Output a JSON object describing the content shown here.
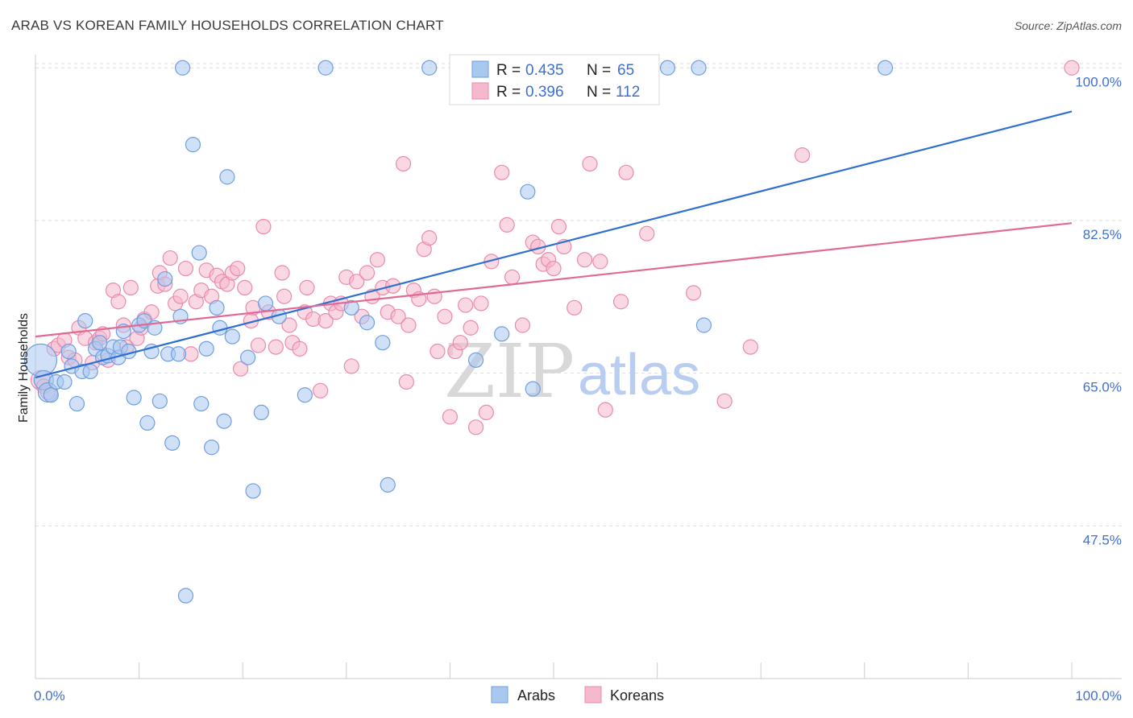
{
  "title": "ARAB VS KOREAN FAMILY HOUSEHOLDS CORRELATION CHART",
  "source": "Source: ZipAtlas.com",
  "watermark": {
    "zip": "ZIP",
    "atlas": "atlas"
  },
  "colors": {
    "arabs_fill": "#a9c8f0",
    "arabs_stroke": "#6f9ee0",
    "arabs_line": "#2f6fd0",
    "koreans_fill": "#f6b8cc",
    "koreans_stroke": "#ea8aaa",
    "koreans_line": "#e06a96",
    "grid": "#dddddd",
    "tick_text": "#3f6fd0"
  },
  "legend": {
    "rows": [
      {
        "r_label": "R =",
        "r_value": "0.435",
        "n_label": "N =",
        "n_value": "65"
      },
      {
        "r_label": "R =",
        "r_value": "0.396",
        "n_label": "N =",
        "n_value": "112"
      }
    ]
  },
  "chart_data": {
    "type": "scatter",
    "title": "ARAB VS KOREAN FAMILY HOUSEHOLDS CORRELATION CHART",
    "ylabel": "Family Households",
    "xlabel": "",
    "xlim": [
      0,
      100
    ],
    "ylim": [
      30,
      101.5
    ],
    "x_tick_labels": [
      "0.0%",
      "100.0%"
    ],
    "y_ticks": [
      {
        "value": 47.5,
        "label": "47.5%"
      },
      {
        "value": 65.0,
        "label": "65.0%"
      },
      {
        "value": 82.5,
        "label": "82.5%"
      },
      {
        "value": 100.0,
        "label": "100.0%"
      }
    ],
    "grid": "horizontal dashed",
    "legend_placement": "top-center",
    "series": [
      {
        "name": "Arabs",
        "trend": {
          "x": [
            0,
            100
          ],
          "y": [
            64.5,
            95.0
          ]
        },
        "points": [
          [
            0.5,
            66.5,
            3
          ],
          [
            0.8,
            64.2,
            2
          ],
          [
            1.2,
            62.8,
            2
          ],
          [
            1.5,
            62.5,
            1
          ],
          [
            2.0,
            64.0,
            1
          ],
          [
            2.8,
            64.0,
            1
          ],
          [
            3.2,
            67.5,
            1
          ],
          [
            3.5,
            65.8,
            1
          ],
          [
            4.0,
            61.5,
            1
          ],
          [
            4.5,
            65.2,
            1
          ],
          [
            4.8,
            71.0,
            1
          ],
          [
            5.3,
            65.2,
            1
          ],
          [
            5.8,
            67.8,
            1
          ],
          [
            6.2,
            68.5,
            1
          ],
          [
            6.5,
            66.8,
            1
          ],
          [
            7.0,
            67.0,
            1
          ],
          [
            7.5,
            68.0,
            1
          ],
          [
            8.0,
            66.8,
            1
          ],
          [
            8.2,
            68.0,
            1
          ],
          [
            8.5,
            69.8,
            1
          ],
          [
            9.0,
            67.5,
            1
          ],
          [
            9.5,
            62.2,
            1
          ],
          [
            10.0,
            70.5,
            1
          ],
          [
            10.5,
            71.0,
            1
          ],
          [
            10.8,
            59.3,
            1
          ],
          [
            11.2,
            67.5,
            1
          ],
          [
            11.5,
            70.2,
            1
          ],
          [
            12.0,
            61.8,
            1
          ],
          [
            12.5,
            75.8,
            1
          ],
          [
            12.8,
            67.2,
            1
          ],
          [
            13.2,
            57.0,
            1
          ],
          [
            13.8,
            67.2,
            1
          ],
          [
            14.0,
            71.5,
            1
          ],
          [
            14.2,
            100.0,
            1
          ],
          [
            14.5,
            39.5,
            1
          ],
          [
            15.2,
            91.2,
            1
          ],
          [
            15.8,
            78.8,
            1
          ],
          [
            16.0,
            61.5,
            1
          ],
          [
            16.5,
            67.8,
            1
          ],
          [
            17.0,
            56.5,
            1
          ],
          [
            17.5,
            72.5,
            1
          ],
          [
            17.8,
            70.2,
            1
          ],
          [
            18.2,
            59.5,
            1
          ],
          [
            18.5,
            87.5,
            1
          ],
          [
            19.0,
            69.2,
            1
          ],
          [
            20.5,
            66.8,
            1
          ],
          [
            21.0,
            51.5,
            1
          ],
          [
            21.8,
            60.5,
            1
          ],
          [
            22.2,
            73.0,
            1
          ],
          [
            23.5,
            71.5,
            1
          ],
          [
            26.0,
            62.5,
            1
          ],
          [
            28.0,
            100.0,
            1
          ],
          [
            30.5,
            72.5,
            1
          ],
          [
            32.0,
            70.8,
            1
          ],
          [
            33.5,
            68.5,
            1
          ],
          [
            34.0,
            52.2,
            1
          ],
          [
            38.0,
            100.0,
            1
          ],
          [
            42.5,
            66.5,
            1
          ],
          [
            45.0,
            69.5,
            1
          ],
          [
            47.5,
            85.8,
            1
          ],
          [
            48.0,
            63.2,
            1
          ],
          [
            61.0,
            100.0,
            1
          ],
          [
            64.0,
            100.0,
            1
          ],
          [
            64.5,
            70.5,
            1
          ],
          [
            82.0,
            100.0,
            1
          ]
        ]
      },
      {
        "name": "Koreans",
        "trend": {
          "x": [
            0,
            100
          ],
          "y": [
            69.2,
            82.2
          ]
        },
        "points": [
          [
            0.5,
            64.2,
            2
          ],
          [
            0.8,
            63.5,
            1
          ],
          [
            1.2,
            62.8,
            1
          ],
          [
            1.8,
            67.8,
            1
          ],
          [
            2.2,
            68.2,
            1
          ],
          [
            2.8,
            68.8,
            1
          ],
          [
            3.2,
            66.8,
            1
          ],
          [
            3.8,
            66.5,
            1
          ],
          [
            4.2,
            70.2,
            1
          ],
          [
            4.8,
            69.0,
            1
          ],
          [
            5.5,
            66.2,
            1
          ],
          [
            5.8,
            68.5,
            1
          ],
          [
            6.2,
            69.0,
            1
          ],
          [
            6.5,
            69.5,
            1
          ],
          [
            7.0,
            66.5,
            1
          ],
          [
            7.5,
            74.5,
            1
          ],
          [
            8.0,
            73.2,
            1
          ],
          [
            8.5,
            70.5,
            1
          ],
          [
            8.8,
            68.0,
            1
          ],
          [
            9.2,
            74.8,
            1
          ],
          [
            9.8,
            69.0,
            1
          ],
          [
            10.2,
            70.2,
            1
          ],
          [
            10.5,
            71.2,
            1
          ],
          [
            11.2,
            72.0,
            1
          ],
          [
            11.8,
            75.0,
            1
          ],
          [
            12.0,
            76.5,
            1
          ],
          [
            12.5,
            75.2,
            1
          ],
          [
            13.0,
            78.2,
            1
          ],
          [
            13.5,
            73.0,
            1
          ],
          [
            14.0,
            73.8,
            1
          ],
          [
            14.5,
            77.0,
            1
          ],
          [
            15.0,
            67.2,
            1
          ],
          [
            15.5,
            73.2,
            1
          ],
          [
            16.0,
            74.5,
            1
          ],
          [
            16.5,
            76.8,
            1
          ],
          [
            17.0,
            73.8,
            1
          ],
          [
            17.5,
            76.2,
            1
          ],
          [
            18.0,
            75.5,
            1
          ],
          [
            18.5,
            75.2,
            1
          ],
          [
            19.0,
            76.5,
            1
          ],
          [
            19.5,
            77.0,
            1
          ],
          [
            19.8,
            65.5,
            1
          ],
          [
            20.2,
            74.8,
            1
          ],
          [
            20.8,
            71.0,
            1
          ],
          [
            21.0,
            72.5,
            1
          ],
          [
            21.5,
            68.2,
            1
          ],
          [
            22.0,
            81.8,
            1
          ],
          [
            22.5,
            72.0,
            1
          ],
          [
            23.2,
            68.0,
            1
          ],
          [
            23.8,
            76.5,
            1
          ],
          [
            24.0,
            73.8,
            1
          ],
          [
            24.5,
            70.5,
            1
          ],
          [
            24.8,
            68.5,
            1
          ],
          [
            25.5,
            67.8,
            1
          ],
          [
            26.0,
            72.0,
            1
          ],
          [
            26.2,
            74.8,
            1
          ],
          [
            26.8,
            71.2,
            1
          ],
          [
            27.5,
            63.0,
            1
          ],
          [
            28.0,
            71.0,
            1
          ],
          [
            28.5,
            73.0,
            1
          ],
          [
            29.0,
            72.0,
            1
          ],
          [
            29.5,
            73.0,
            1
          ],
          [
            30.0,
            76.0,
            1
          ],
          [
            30.5,
            65.8,
            1
          ],
          [
            31.0,
            75.5,
            1
          ],
          [
            31.5,
            71.5,
            1
          ],
          [
            32.0,
            76.5,
            1
          ],
          [
            32.5,
            73.8,
            1
          ],
          [
            33.0,
            78.0,
            1
          ],
          [
            33.5,
            74.8,
            1
          ],
          [
            34.0,
            72.0,
            1
          ],
          [
            34.5,
            75.0,
            1
          ],
          [
            35.0,
            71.5,
            1
          ],
          [
            35.5,
            89.0,
            1
          ],
          [
            35.8,
            64.0,
            1
          ],
          [
            36.0,
            70.5,
            1
          ],
          [
            36.5,
            74.5,
            1
          ],
          [
            37.0,
            73.5,
            1
          ],
          [
            37.5,
            79.2,
            1
          ],
          [
            38.0,
            80.5,
            1
          ],
          [
            38.5,
            73.8,
            1
          ],
          [
            38.8,
            67.5,
            1
          ],
          [
            39.5,
            71.5,
            1
          ],
          [
            40.0,
            60.0,
            1
          ],
          [
            40.5,
            67.5,
            1
          ],
          [
            41.0,
            68.5,
            1
          ],
          [
            41.5,
            72.8,
            1
          ],
          [
            42.0,
            70.2,
            1
          ],
          [
            42.5,
            58.8,
            1
          ],
          [
            43.0,
            73.0,
            1
          ],
          [
            43.5,
            60.5,
            1
          ],
          [
            44.0,
            77.8,
            1
          ],
          [
            45.0,
            88.0,
            1
          ],
          [
            45.5,
            82.0,
            1
          ],
          [
            46.0,
            76.0,
            1
          ],
          [
            47.0,
            70.5,
            1
          ],
          [
            48.0,
            80.0,
            1
          ],
          [
            48.5,
            79.5,
            1
          ],
          [
            49.0,
            77.5,
            1
          ],
          [
            49.5,
            78.0,
            1
          ],
          [
            50.0,
            77.0,
            1
          ],
          [
            50.5,
            81.8,
            1
          ],
          [
            51.0,
            79.5,
            1
          ],
          [
            52.0,
            72.5,
            1
          ],
          [
            53.0,
            78.0,
            1
          ],
          [
            53.5,
            89.0,
            1
          ],
          [
            54.5,
            77.8,
            1
          ],
          [
            55.0,
            60.8,
            1
          ],
          [
            56.5,
            73.2,
            1
          ],
          [
            57.0,
            88.0,
            1
          ],
          [
            59.0,
            81.0,
            1
          ],
          [
            63.5,
            74.2,
            1
          ],
          [
            66.5,
            61.8,
            1
          ],
          [
            69.0,
            68.0,
            1
          ],
          [
            74.0,
            90.0,
            1
          ],
          [
            100.0,
            100.0,
            1
          ]
        ]
      }
    ]
  }
}
